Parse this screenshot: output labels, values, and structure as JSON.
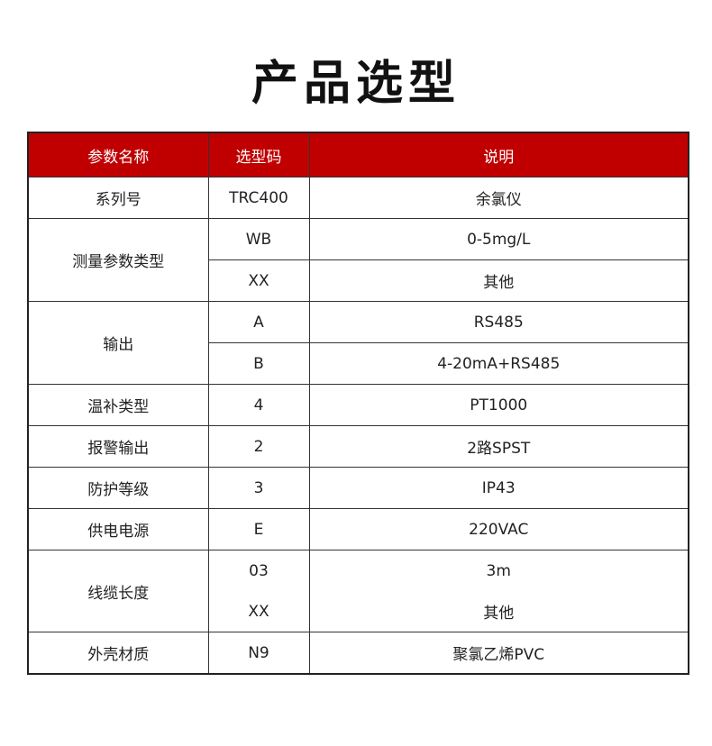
{
  "title": "产品选型",
  "header": {
    "col1": "参数名称",
    "col2": "选型码",
    "col3": "说明"
  },
  "header_color": "#c00000",
  "groups": [
    {
      "name": "系列号",
      "items": [
        {
          "code": "TRC400",
          "desc": "余氯仪"
        }
      ]
    },
    {
      "name": "测量参数类型",
      "items": [
        {
          "code": "WB",
          "desc": "0-5mg/L"
        },
        {
          "code": "XX",
          "desc": "其他"
        }
      ]
    },
    {
      "name": "输出",
      "items": [
        {
          "code": "A",
          "desc": "RS485"
        },
        {
          "code": "B",
          "desc": "4-20mA+RS485"
        }
      ]
    },
    {
      "name": "温补类型",
      "items": [
        {
          "code": "4",
          "desc": "PT1000"
        }
      ]
    },
    {
      "name": "报警输出",
      "items": [
        {
          "code": "2",
          "desc": "2路SPST"
        }
      ]
    },
    {
      "name": "防护等级",
      "items": [
        {
          "code": "3",
          "desc": "IP43"
        }
      ]
    },
    {
      "name": "供电电源",
      "items": [
        {
          "code": "E",
          "desc": "220VAC"
        }
      ]
    },
    {
      "name": "线缆长度",
      "items": [
        {
          "code": "03",
          "desc": "3m"
        },
        {
          "code": "XX",
          "desc": "其他"
        }
      ],
      "merged_lines": true
    },
    {
      "name": "外壳材质",
      "items": [
        {
          "code": "N9",
          "desc": "聚氯乙烯PVC"
        }
      ]
    }
  ]
}
